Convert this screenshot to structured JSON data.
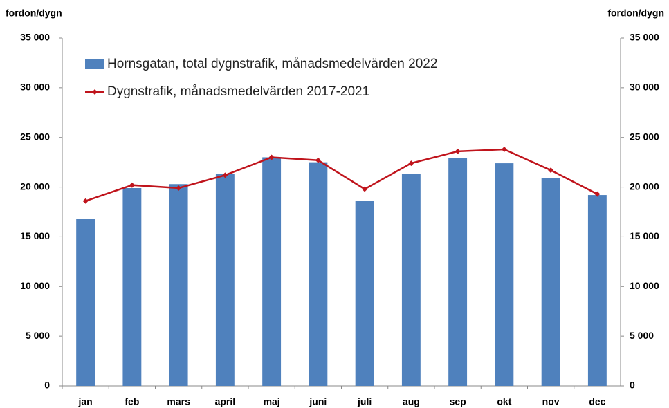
{
  "chart_data": {
    "type": "bar",
    "y_label": "fordon/dygn",
    "y2_label": "fordon/dygn",
    "categories": [
      "jan",
      "feb",
      "mars",
      "april",
      "maj",
      "juni",
      "juli",
      "aug",
      "sep",
      "okt",
      "nov",
      "dec"
    ],
    "series": [
      {
        "name": "Hornsgatan, total dygnstrafik, månadsmedelvärden 2022",
        "type": "bar",
        "color": "#4f81bd",
        "values": [
          16800,
          19900,
          20300,
          21300,
          23000,
          22500,
          18600,
          21300,
          22900,
          22400,
          20900,
          19200
        ]
      },
      {
        "name": "Dygnstrafik, månadsmedelvärden 2017-2021",
        "type": "line",
        "color": "#c0141c",
        "axis": "y2",
        "values": [
          18600,
          20200,
          19900,
          21200,
          23000,
          22700,
          19800,
          22400,
          23600,
          23800,
          21700,
          19300
        ]
      }
    ],
    "ylim": [
      0,
      35000
    ],
    "yticks": [
      0,
      {
        "value": 5000,
        "label": "5 000"
      },
      {
        "value": 10000,
        "label": "10 000"
      },
      {
        "value": 15000,
        "label": "15 000"
      },
      {
        "value": 20000,
        "label": "20 000"
      },
      {
        "value": 25000,
        "label": "25 000"
      },
      {
        "value": 30000,
        "label": "30 000"
      },
      {
        "value": 35000,
        "label": "35 000"
      }
    ],
    "y2lim": [
      0,
      35000
    ],
    "y2ticks": [
      0,
      {
        "value": 5000,
        "label": "5 000"
      },
      {
        "value": 10000,
        "label": "10 000"
      },
      {
        "value": 15000,
        "label": "15 000"
      },
      {
        "value": 20000,
        "label": "20 000"
      },
      {
        "value": 25000,
        "label": "25 000"
      },
      {
        "value": 30000,
        "label": "30 000"
      },
      {
        "value": 35000,
        "label": "35 000"
      }
    ],
    "grid": false
  }
}
